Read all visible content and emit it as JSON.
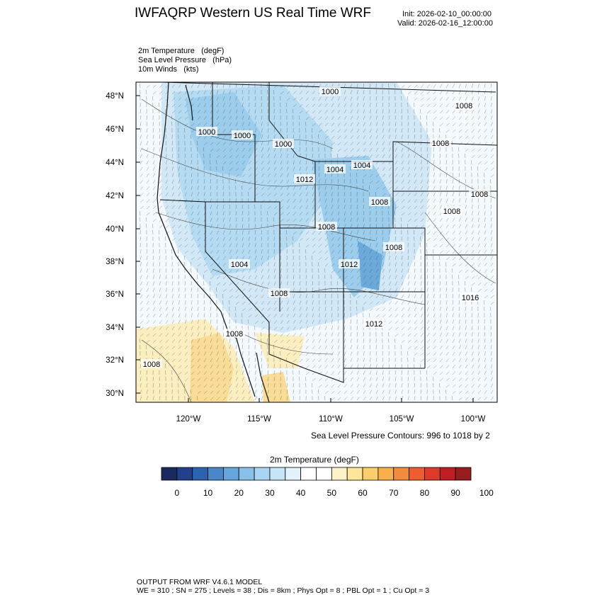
{
  "header": {
    "title": "IWFAQRP Western US Real Time WRF",
    "init": "Init: 2026-02-10_00:00:00",
    "valid": "Valid: 2026-02-16_12:00:00"
  },
  "fields": [
    {
      "name": "2m Temperature",
      "unit": "(degF)"
    },
    {
      "name": "Sea Level Pressure",
      "unit": "(hPa)"
    },
    {
      "name": "10m Winds",
      "unit": "(kts)"
    }
  ],
  "map": {
    "lat_labels": [
      "48°N",
      "46°N",
      "44°N",
      "42°N",
      "40°N",
      "38°N",
      "36°N",
      "34°N",
      "32°N",
      "30°N"
    ],
    "lon_labels": [
      "120°W",
      "115°W",
      "110°W",
      "105°W",
      "100°W"
    ],
    "slp_contour_labels": [
      "1000",
      "1008",
      "1000",
      "1000",
      "1000",
      "1008",
      "1004",
      "1004",
      "1012",
      "1008",
      "1008",
      "1008",
      "1004",
      "1008",
      "1008",
      "1012",
      "1016",
      "1012",
      "1008",
      "1008",
      "1008"
    ],
    "contours_note": "Sea Level Pressure Contours: 996 to 1018 by 2"
  },
  "colorbar": {
    "title": "2m Temperature  (degF)",
    "colors": [
      "#1b2a5e",
      "#23408a",
      "#2c62b0",
      "#4a86c8",
      "#66a6dc",
      "#89c0e8",
      "#a8d5f1",
      "#c6e5f6",
      "#e2f1fa",
      "#ffffff",
      "#ffffff",
      "#fdf3c8",
      "#fde59a",
      "#fbcd6c",
      "#f8b04c",
      "#f38b3d",
      "#ec5e30",
      "#dc3a2a",
      "#bf1f24",
      "#961c1e"
    ],
    "labels": [
      "0",
      "10",
      "20",
      "30",
      "40",
      "50",
      "60",
      "70",
      "80",
      "90",
      "100"
    ]
  },
  "footer": {
    "line1": "OUTPUT FROM WRF V4.6.1 MODEL",
    "line2": "WE = 310 ; SN = 275 ; Levels = 38 ; Dis = 8km ; Phys Opt = 8 ; PBL Opt = 1 ; Cu Opt = 3"
  }
}
